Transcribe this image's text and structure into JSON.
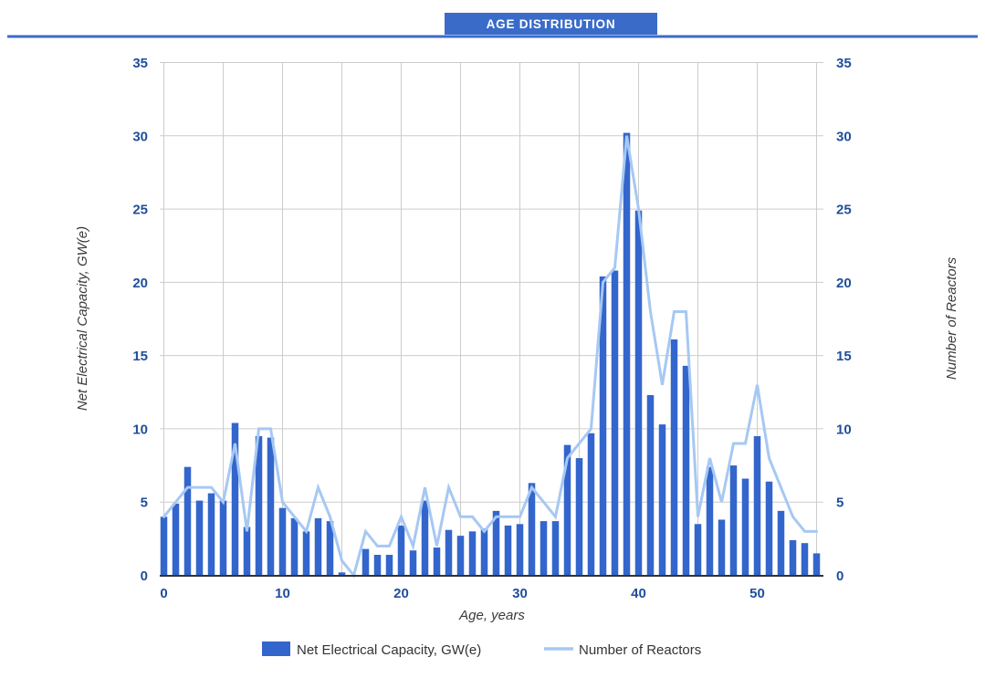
{
  "header": {
    "title": "AGE DISTRIBUTION"
  },
  "colors": {
    "accent": "#3A6BC9",
    "bar": "#3366CC",
    "line": "#A6C8F3",
    "grid": "#CCCCCC",
    "axis_line": "#333333",
    "tick_label": "#1F4E9C",
    "axis_title": "#3A3A3A",
    "legend_text": "#333333",
    "banner_text": "#FFFFFF",
    "background": "#FFFFFF"
  },
  "chart_data": {
    "type": "combo-bar-line",
    "title": "AGE DISTRIBUTION",
    "xlabel": "Age, years",
    "ylabel_left": "Net Electrical Capacity, GW(e)",
    "ylabel_right": "Number of Reactors",
    "x": [
      0,
      1,
      2,
      3,
      4,
      5,
      6,
      7,
      8,
      9,
      10,
      11,
      12,
      13,
      14,
      15,
      16,
      17,
      18,
      19,
      20,
      21,
      22,
      23,
      24,
      25,
      26,
      27,
      28,
      29,
      30,
      31,
      32,
      33,
      34,
      35,
      36,
      37,
      38,
      39,
      40,
      41,
      42,
      43,
      44,
      45,
      46,
      47,
      48,
      49,
      50,
      51,
      52,
      53,
      54,
      55
    ],
    "series": [
      {
        "name": "Net Electrical Capacity, GW(e)",
        "type": "bar",
        "axis": "left",
        "color": "#3366CC",
        "values": [
          4.0,
          4.9,
          7.4,
          5.1,
          5.6,
          5.1,
          10.4,
          3.3,
          9.5,
          9.4,
          4.6,
          3.9,
          3.0,
          3.9,
          3.7,
          0.2,
          0,
          1.8,
          1.4,
          1.4,
          3.4,
          1.7,
          5.1,
          1.9,
          3.1,
          2.7,
          3.0,
          3.2,
          4.4,
          3.4,
          3.5,
          6.3,
          3.7,
          3.7,
          8.9,
          8.0,
          9.7,
          20.4,
          20.8,
          30.2,
          24.9,
          12.3,
          10.3,
          16.1,
          14.3,
          3.5,
          7.4,
          3.8,
          7.5,
          6.6,
          9.5,
          6.4,
          4.4,
          2.4,
          2.2,
          1.5
        ]
      },
      {
        "name": "Number of Reactors",
        "type": "line",
        "axis": "right",
        "color": "#A6C8F3",
        "values": [
          4,
          5,
          6,
          6,
          6,
          5,
          9,
          3,
          10,
          10,
          5,
          4,
          3,
          6,
          4,
          1,
          0,
          3,
          2,
          2,
          4,
          2,
          6,
          2,
          6,
          4,
          4,
          3,
          4,
          4,
          4,
          6,
          5,
          4,
          8,
          9,
          10,
          20,
          21,
          30,
          25,
          18,
          13,
          18,
          18,
          4,
          8,
          5,
          9,
          9,
          13,
          8,
          6,
          4,
          3,
          3
        ]
      }
    ],
    "ylim": [
      0,
      35
    ],
    "ylim_right": [
      0,
      35
    ],
    "yticks": [
      0,
      5,
      10,
      15,
      20,
      25,
      30,
      35
    ],
    "yticks_right": [
      0,
      5,
      10,
      15,
      20,
      25,
      30,
      35
    ],
    "xticks": [
      0,
      10,
      20,
      30,
      40,
      50
    ],
    "x_gridline_step": 5,
    "grid": true,
    "legend_position": "bottom"
  },
  "legend": {
    "items": [
      {
        "label": "Net Electrical Capacity, GW(e)",
        "swatch": "square"
      },
      {
        "label": "Number of Reactors",
        "swatch": "line"
      }
    ]
  }
}
